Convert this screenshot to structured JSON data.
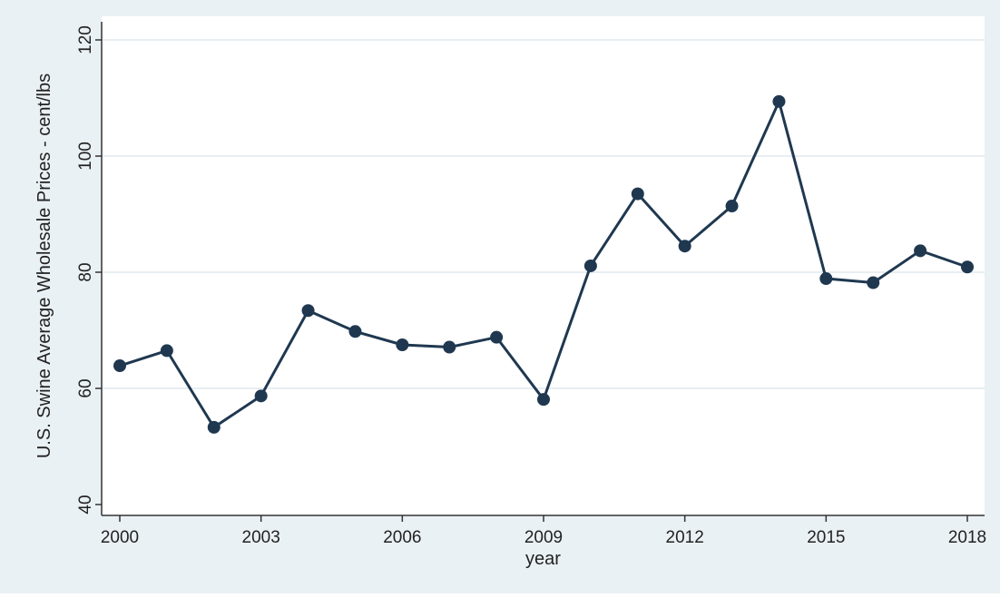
{
  "chart_data": {
    "type": "line",
    "title": "",
    "xlabel": "year",
    "ylabel": "U.S. Swine Average Wholesale Prices - cent/lbs",
    "xlim": [
      2000,
      2018
    ],
    "ylim": [
      40,
      120
    ],
    "x_ticks": [
      2000,
      2003,
      2006,
      2009,
      2012,
      2015,
      2018
    ],
    "y_ticks": [
      40,
      60,
      80,
      100,
      120
    ],
    "grid": "horizontal",
    "legend": "none",
    "series": [
      {
        "x": [
          2000,
          2001,
          2002,
          2003,
          2004,
          2005,
          2006,
          2007,
          2008,
          2009,
          2010,
          2011,
          2012,
          2013,
          2014,
          2015,
          2016,
          2017,
          2018
        ],
        "values": [
          63.9,
          66.5,
          53.3,
          58.7,
          73.4,
          69.8,
          67.5,
          67.1,
          68.8,
          58.1,
          81.1,
          93.5,
          84.5,
          91.4,
          109.4,
          78.9,
          78.2,
          83.7,
          80.9
        ]
      }
    ],
    "colors": {
      "line": "#1f3850",
      "marker": "#1f3850",
      "plot_bg": "#ffffff",
      "outer_bg": "#eaf1f5",
      "grid": "#e8eef2",
      "axis": "#333333"
    }
  }
}
